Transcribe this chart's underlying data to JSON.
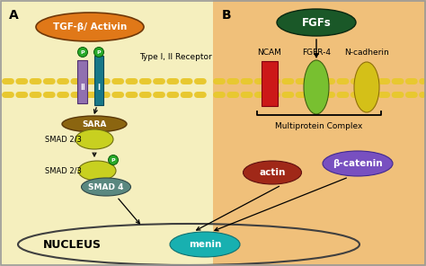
{
  "bg_left": "#f5efbe",
  "bg_right": "#f0c07a",
  "border_color": "#999999",
  "membrane_color": "#e8c830",
  "label_A": "A",
  "label_B": "B",
  "tgf_label": "TGF-β/ Activin",
  "tgf_color": "#e07818",
  "receptor_label": "Type I, II Receptor",
  "receptor_I_color": "#187888",
  "receptor_II_color": "#9070b0",
  "sara_label": "SARA",
  "sara_color": "#8B6510",
  "smad23_color": "#c8d020",
  "smad4_color": "#5a8880",
  "smad4_label": "SMAD 4",
  "smad23_label": "SMAD 2/3",
  "p_color": "#28a828",
  "nucleus_border": "#404040",
  "nucleus_label": "NUCLEUS",
  "menin_label": "menin",
  "menin_color": "#18b0b0",
  "fgfs_label": "FGFs",
  "fgfs_color": "#1a5828",
  "ncam_label": "NCAM",
  "ncam_color": "#cc1818",
  "fgfr4_label": "FGFR-4",
  "fgfr4_color": "#78c030",
  "ncadherin_label": "N-cadherin",
  "ncadherin_color": "#d4c018",
  "multiprotein_label": "Multiprotein Complex",
  "actin_label": "actin",
  "actin_color": "#a02818",
  "bcatenin_label": "β-catenin",
  "bcatenin_color": "#7850c0"
}
